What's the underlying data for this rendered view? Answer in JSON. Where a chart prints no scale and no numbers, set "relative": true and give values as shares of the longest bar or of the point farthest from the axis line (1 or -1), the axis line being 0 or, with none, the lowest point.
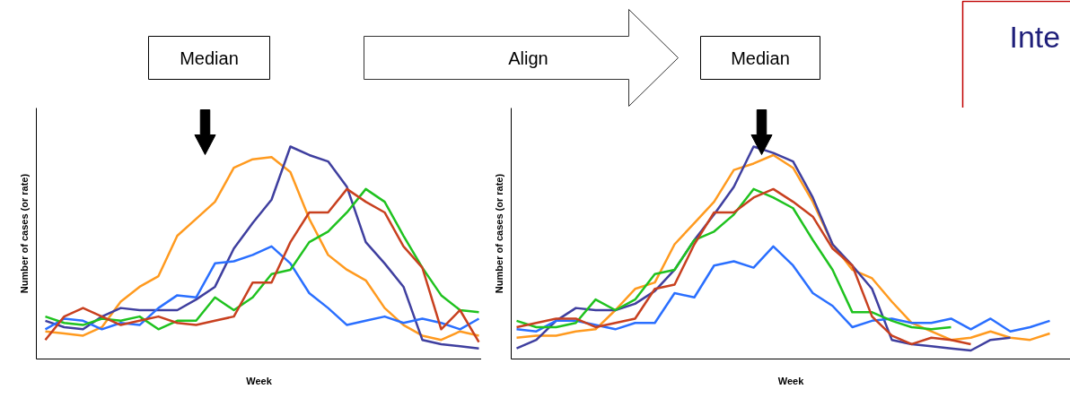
{
  "chart_data": [
    {
      "type": "line",
      "relative": true,
      "xlabel": "Week",
      "ylabel": "Number of cases (or rate)",
      "annotations": [
        "Median",
        "Align"
      ],
      "categories": [
        null,
        null,
        null,
        null,
        null,
        null,
        null,
        null,
        null,
        null,
        null,
        null,
        null,
        null,
        null,
        null,
        null,
        null,
        null,
        null,
        null,
        null,
        null,
        null
      ],
      "series": [
        {
          "color": "#ff9a1f",
          "values": [
            0.13,
            0.12,
            0.11,
            0.15,
            0.27,
            0.34,
            0.39,
            0.58,
            0.66,
            0.74,
            0.9,
            0.94,
            0.95,
            0.88,
            0.66,
            0.49,
            0.42,
            0.37,
            0.24,
            0.16,
            0.11,
            0.09,
            0.13,
            0.11
          ]
        },
        {
          "color": "#3f3f9f",
          "values": [
            0.18,
            0.15,
            0.14,
            0.2,
            0.24,
            0.23,
            0.23,
            0.23,
            0.28,
            0.34,
            0.52,
            0.64,
            0.75,
            1.0,
            0.96,
            0.93,
            0.81,
            0.55,
            0.45,
            0.34,
            0.09,
            0.07,
            0.06,
            0.05
          ]
        },
        {
          "color": "#2a6fff",
          "values": [
            0.14,
            0.19,
            0.18,
            0.14,
            0.17,
            0.16,
            0.24,
            0.3,
            0.29,
            0.45,
            0.46,
            0.49,
            0.53,
            0.45,
            0.31,
            0.24,
            0.16,
            0.18,
            0.2,
            0.17,
            0.19,
            0.17,
            0.14,
            0.19
          ]
        },
        {
          "color": "#1fc21f",
          "values": [
            0.2,
            0.17,
            0.16,
            0.19,
            0.18,
            0.2,
            0.14,
            0.18,
            0.18,
            0.29,
            0.23,
            0.29,
            0.4,
            0.42,
            0.55,
            0.6,
            0.69,
            0.8,
            0.74,
            0.58,
            0.43,
            0.3,
            0.23,
            0.22
          ]
        },
        {
          "color": "#c8401f",
          "values": [
            0.09,
            0.2,
            0.24,
            0.2,
            0.16,
            0.18,
            0.2,
            0.17,
            0.16,
            0.18,
            0.2,
            0.36,
            0.36,
            0.55,
            0.69,
            0.69,
            0.8,
            0.74,
            0.69,
            0.53,
            0.43,
            0.14,
            0.23,
            0.08
          ]
        }
      ]
    },
    {
      "type": "line",
      "relative": true,
      "xlabel": "Week",
      "ylabel": "Number of cases (or rate)",
      "annotations": [
        "Median",
        "Inte"
      ],
      "categories": [
        null,
        null,
        null,
        null,
        null,
        null,
        null,
        null,
        null,
        null,
        null,
        null,
        null,
        null,
        null,
        null,
        null,
        null,
        null,
        null,
        null,
        null,
        null,
        null,
        null,
        null,
        null,
        null
      ],
      "series": [
        {
          "color": "#ff9a1f",
          "values": [
            0.1,
            0.11,
            0.11,
            0.13,
            0.14,
            0.23,
            0.33,
            0.36,
            0.54,
            0.64,
            0.74,
            0.89,
            0.92,
            0.96,
            0.9,
            0.74,
            0.54,
            0.42,
            0.38,
            0.27,
            0.17,
            0.13,
            0.09,
            0.1,
            0.13,
            0.1,
            0.09,
            0.12
          ]
        },
        {
          "color": "#3f3f9f",
          "values": [
            0.05,
            0.09,
            0.18,
            0.24,
            0.23,
            0.23,
            0.26,
            0.32,
            0.42,
            0.56,
            0.68,
            0.81,
            1.0,
            0.97,
            0.93,
            0.76,
            0.54,
            0.44,
            0.33,
            0.09,
            0.07,
            0.06,
            0.05,
            0.04,
            0.09,
            0.1,
            null,
            null
          ]
        },
        {
          "color": "#2a6fff",
          "values": [
            0.14,
            0.13,
            0.18,
            0.18,
            0.16,
            0.14,
            0.17,
            0.17,
            0.31,
            0.29,
            0.44,
            0.46,
            0.43,
            0.53,
            0.44,
            0.31,
            0.25,
            0.15,
            0.18,
            0.19,
            0.17,
            0.17,
            0.19,
            0.14,
            0.19,
            0.13,
            0.15,
            0.18
          ]
        },
        {
          "color": "#1fc21f",
          "values": [
            0.18,
            0.15,
            0.15,
            0.17,
            0.28,
            0.23,
            0.28,
            0.4,
            0.42,
            0.56,
            0.6,
            0.68,
            0.8,
            0.76,
            0.71,
            0.56,
            0.42,
            0.22,
            0.22,
            0.18,
            0.15,
            0.14,
            0.15,
            null,
            null,
            null,
            null,
            null
          ]
        },
        {
          "color": "#c8401f",
          "values": [
            0.15,
            0.17,
            0.19,
            0.19,
            0.15,
            0.17,
            0.19,
            0.33,
            0.35,
            0.54,
            0.69,
            0.69,
            0.76,
            0.8,
            0.74,
            0.67,
            0.52,
            0.44,
            0.2,
            0.11,
            0.07,
            0.1,
            0.09,
            0.07,
            null,
            null,
            null,
            null
          ]
        }
      ]
    }
  ]
}
